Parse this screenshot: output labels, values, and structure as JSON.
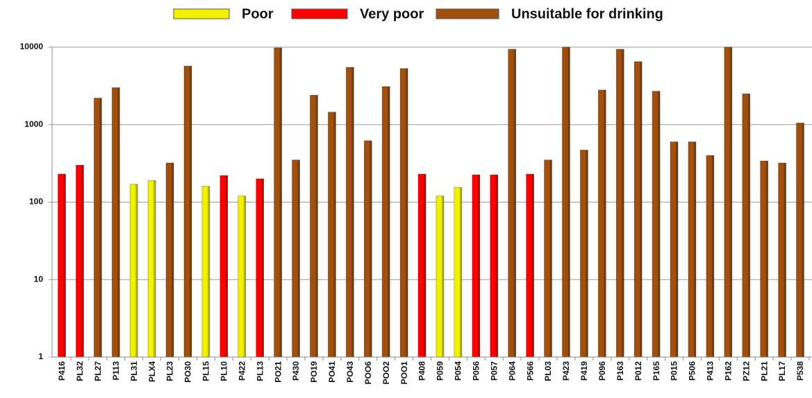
{
  "chart_data": {
    "type": "bar",
    "log_scale": true,
    "grid": true,
    "legend": "top",
    "categories": [
      "P416",
      "PL32",
      "PL27",
      "P113",
      "PL31",
      "PLX4",
      "PL23",
      "PO30",
      "PL15",
      "PL10",
      "P422",
      "PL13",
      "PO21",
      "P430",
      "PO19",
      "PO41",
      "PO43",
      "POO6",
      "POO2",
      "POO1",
      "P408",
      "P059",
      "P054",
      "P056",
      "P057",
      "P064",
      "P566",
      "PL03",
      "P423",
      "P419",
      "P096",
      "P163",
      "P012",
      "P165",
      "P015",
      "P506",
      "P413",
      "P162",
      "PZ12",
      "PL21",
      "PL17",
      "P538"
    ],
    "series": [
      {
        "name": "Poor",
        "color": "#f2f200",
        "values": [
          null,
          null,
          null,
          null,
          170,
          190,
          null,
          null,
          160,
          null,
          120,
          null,
          null,
          null,
          null,
          null,
          null,
          null,
          null,
          null,
          null,
          120,
          155,
          null,
          null,
          null,
          null,
          null,
          null,
          null,
          null,
          null,
          null,
          null,
          null,
          null,
          null,
          null,
          null,
          null,
          null,
          null
        ]
      },
      {
        "name": "Very poor",
        "color": "#ff0000",
        "values": [
          230,
          300,
          null,
          null,
          null,
          null,
          null,
          null,
          null,
          220,
          null,
          200,
          null,
          null,
          null,
          null,
          null,
          null,
          null,
          null,
          230,
          null,
          null,
          225,
          225,
          null,
          230,
          null,
          null,
          null,
          null,
          null,
          null,
          null,
          null,
          null,
          null,
          null,
          null,
          null,
          null,
          null
        ]
      },
      {
        "name": "Unsuitable for drinking",
        "color": "#a0500f",
        "values": [
          null,
          null,
          2200,
          3000,
          null,
          null,
          320,
          5700,
          null,
          null,
          null,
          null,
          9800,
          350,
          2400,
          1450,
          5500,
          620,
          3100,
          5300,
          null,
          null,
          null,
          null,
          null,
          9400,
          null,
          350,
          10000,
          470,
          2800,
          9400,
          6500,
          2700,
          600,
          600,
          400,
          10000,
          2500,
          340,
          320,
          1050
        ]
      }
    ],
    "ylim": [
      1,
      10000
    ],
    "yticks": [
      1,
      10,
      100,
      1000,
      10000
    ]
  }
}
